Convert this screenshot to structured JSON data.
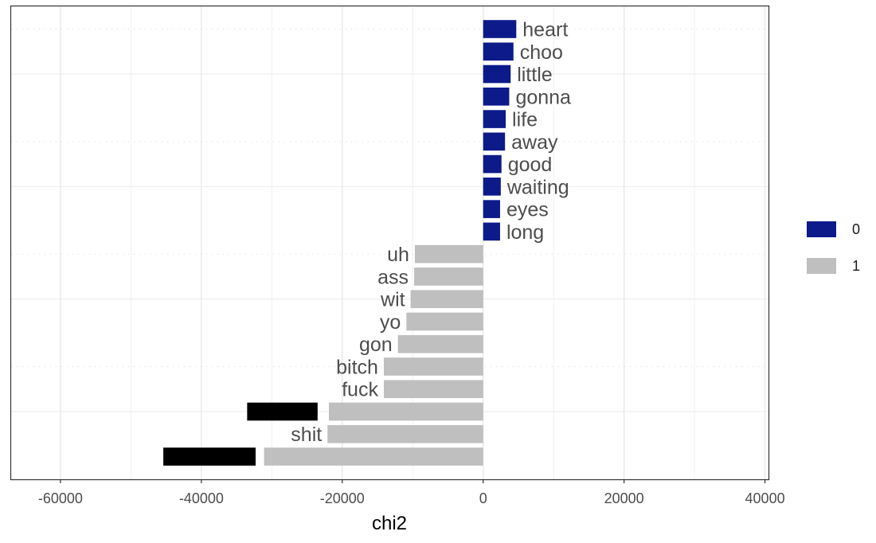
{
  "chart_data": {
    "type": "bar",
    "orientation": "horizontal",
    "title": "",
    "xlabel": "chi2",
    "ylabel": "",
    "xlim": [
      -67000,
      40500
    ],
    "xticks": [
      -60000,
      -40000,
      -20000,
      0,
      20000,
      40000
    ],
    "xtick_labels": [
      "-60000",
      "-40000",
      "-20000",
      "0",
      "20000",
      "40000"
    ],
    "grid": true,
    "legend_position": "right",
    "legend": [
      {
        "label": "0",
        "color": "#0d1a8a"
      },
      {
        "label": "1",
        "color": "#bfbfbf"
      }
    ],
    "bars": [
      {
        "label": "heart",
        "value": 4700,
        "group": "0"
      },
      {
        "label": "choo",
        "value": 4300,
        "group": "0"
      },
      {
        "label": "little",
        "value": 3900,
        "group": "0"
      },
      {
        "label": "gonna",
        "value": 3700,
        "group": "0"
      },
      {
        "label": "life",
        "value": 3200,
        "group": "0"
      },
      {
        "label": "away",
        "value": 3100,
        "group": "0"
      },
      {
        "label": "good",
        "value": 2600,
        "group": "0"
      },
      {
        "label": "waiting",
        "value": 2500,
        "group": "0"
      },
      {
        "label": "eyes",
        "value": 2400,
        "group": "0"
      },
      {
        "label": "long",
        "value": 2400,
        "group": "0"
      },
      {
        "label": "uh",
        "value": -9700,
        "group": "1"
      },
      {
        "label": "ass",
        "value": -9800,
        "group": "1"
      },
      {
        "label": "wit",
        "value": -10300,
        "group": "1"
      },
      {
        "label": "yo",
        "value": -10900,
        "group": "1"
      },
      {
        "label": "gon",
        "value": -12100,
        "group": "1"
      },
      {
        "label": "bitch",
        "value": -14100,
        "group": "1"
      },
      {
        "label": "fuck",
        "value": -14100,
        "group": "1"
      },
      {
        "label": "",
        "value": -21900,
        "group": "1",
        "redacted": true,
        "redact_from": -23500,
        "redact_to": -33500
      },
      {
        "label": "shit",
        "value": -22100,
        "group": "1"
      },
      {
        "label": "",
        "value": -31100,
        "group": "1",
        "redacted": true,
        "redact_from": -32300,
        "redact_to": -45400
      }
    ]
  }
}
